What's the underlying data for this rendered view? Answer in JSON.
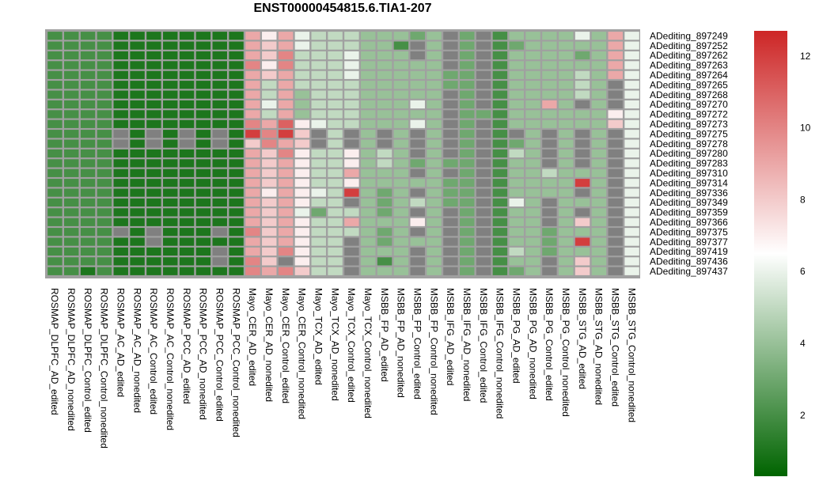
{
  "chart_data": {
    "type": "heatmap",
    "title": "ENST00000454815.6.TIA1-207",
    "rows": [
      "ADediting_897249",
      "ADediting_897252",
      "ADediting_897262",
      "ADediting_897263",
      "ADediting_897264",
      "ADediting_897265",
      "ADediting_897268",
      "ADediting_897270",
      "ADediting_897272",
      "ADediting_897273",
      "ADediting_897275",
      "ADediting_897278",
      "ADediting_897280",
      "ADediting_897283",
      "ADediting_897310",
      "ADediting_897314",
      "ADediting_897336",
      "ADediting_897349",
      "ADediting_897359",
      "ADediting_897366",
      "ADediting_897375",
      "ADediting_897377",
      "ADediting_897419",
      "ADediting_897436",
      "ADediting_897437"
    ],
    "columns": [
      "ROSMAP_DLPFC_AD_edited",
      "ROSMAP_DLPFC_AD_nonedited",
      "ROSMAP_DLPFC_Control_edited",
      "ROSMAP_DLPFC_Control_nonedited",
      "ROSMAP_AC_AD_edited",
      "ROSMAP_AC_AD_nonedited",
      "ROSMAP_AC_Control_edited",
      "ROSMAP_AC_Control_nonedited",
      "ROSMAP_PCC_AD_edited",
      "ROSMAP_PCC_AD_nonedited",
      "ROSMAP_PCC_Control_edited",
      "ROSMAP_PCC_Control_nonedited",
      "Mayo_CER_AD_edited",
      "Mayo_CER_AD_nonedited",
      "Mayo_CER_Control_edited",
      "Mayo_CER_Control_nonedited",
      "Mayo_TCX_AD_edited",
      "Mayo_TCX_AD_nonedited",
      "Mayo_TCX_Control_edited",
      "Mayo_TCX_Control_nonedited",
      "MSBB_FP_AD_edited",
      "MSBB_FP_AD_nonedited",
      "MSBB_FP_Control_edited",
      "MSBB_FP_Control_nonedited",
      "MSBB_IFG_AD_edited",
      "MSBB_IFG_AD_nonedited",
      "MSBB_IFG_Control_edited",
      "MSBB_IFG_Control_nonedited",
      "MSBB_PG_AD_edited",
      "MSBB_PG_AD_nonedited",
      "MSBB_PG_Control_edited",
      "MSBB_PG_Control_nonedited",
      "MSBB_STG_AD_edited",
      "MSBB_STG_AD_nonedited",
      "MSBB_STG_Control_edited",
      "MSBB_STG_Control_nonedited"
    ],
    "values": [
      [
        2,
        2,
        2,
        2,
        1,
        1,
        1,
        1,
        1,
        1,
        1,
        1,
        9,
        7,
        9,
        6,
        5,
        5,
        5,
        4,
        4,
        4,
        3,
        4,
        null,
        3,
        null,
        2,
        4,
        4,
        4,
        4,
        6,
        4,
        9,
        6
      ],
      [
        2,
        2,
        2,
        2,
        1,
        1,
        1,
        1,
        1,
        1,
        1,
        1,
        9,
        8,
        9,
        6,
        5,
        5,
        5,
        4,
        4,
        2,
        null,
        4,
        null,
        3,
        null,
        2,
        3,
        4,
        4,
        4,
        4,
        4,
        9,
        6
      ],
      [
        2,
        2,
        2,
        2,
        1,
        1,
        1,
        1,
        1,
        1,
        1,
        1,
        9,
        8,
        10,
        5,
        5,
        5,
        6,
        4,
        4,
        4,
        null,
        4,
        null,
        3,
        null,
        2,
        4,
        4,
        4,
        4,
        3,
        4,
        9,
        6
      ],
      [
        2,
        2,
        2,
        2,
        1,
        1,
        1,
        1,
        1,
        1,
        1,
        1,
        10,
        7,
        10,
        5,
        5,
        5,
        6,
        4,
        4,
        4,
        4,
        4,
        null,
        3,
        null,
        2,
        4,
        4,
        4,
        4,
        4,
        4,
        9,
        6
      ],
      [
        2,
        2,
        2,
        2,
        1,
        1,
        1,
        1,
        1,
        1,
        1,
        1,
        9,
        8,
        9,
        5,
        5,
        5,
        6,
        4,
        4,
        4,
        4,
        4,
        3,
        3,
        null,
        2,
        4,
        4,
        4,
        4,
        5,
        4,
        9,
        6
      ],
      [
        2,
        2,
        2,
        2,
        1,
        1,
        1,
        1,
        1,
        1,
        1,
        1,
        9,
        5,
        9,
        5,
        5,
        5,
        5,
        4,
        4,
        4,
        4,
        4,
        3,
        3,
        null,
        2,
        4,
        4,
        4,
        4,
        5,
        4,
        null,
        6
      ],
      [
        2,
        2,
        2,
        2,
        1,
        1,
        1,
        1,
        1,
        1,
        1,
        1,
        9,
        5,
        9,
        4,
        5,
        5,
        5,
        4,
        4,
        4,
        4,
        4,
        null,
        3,
        null,
        2,
        4,
        4,
        4,
        4,
        5,
        4,
        null,
        6
      ],
      [
        2,
        2,
        2,
        2,
        1,
        1,
        1,
        1,
        1,
        1,
        1,
        1,
        9,
        6,
        9,
        4,
        5,
        5,
        5,
        4,
        4,
        4,
        6,
        4,
        null,
        3,
        null,
        2,
        4,
        4,
        9,
        4,
        null,
        4,
        null,
        6
      ],
      [
        2,
        2,
        2,
        2,
        1,
        1,
        1,
        1,
        1,
        1,
        1,
        1,
        9,
        5,
        9,
        4,
        5,
        5,
        5,
        4,
        4,
        4,
        4,
        4,
        null,
        3,
        3,
        2,
        4,
        4,
        4,
        4,
        4,
        4,
        7,
        6
      ],
      [
        2,
        2,
        2,
        2,
        1,
        1,
        1,
        1,
        1,
        1,
        1,
        1,
        10,
        9,
        11,
        7,
        6,
        5,
        5,
        4,
        4,
        4,
        6,
        4,
        null,
        3,
        null,
        2,
        4,
        4,
        4,
        4,
        4,
        4,
        8,
        6
      ],
      [
        2,
        2,
        2,
        2,
        null,
        1,
        null,
        1,
        null,
        1,
        null,
        1,
        12,
        10,
        12,
        8,
        null,
        5,
        null,
        4,
        null,
        4,
        null,
        4,
        null,
        3,
        null,
        2,
        null,
        4,
        null,
        4,
        null,
        4,
        null,
        6
      ],
      [
        2,
        2,
        2,
        2,
        null,
        1,
        null,
        1,
        null,
        1,
        null,
        1,
        8,
        10,
        9,
        8,
        null,
        5,
        null,
        4,
        null,
        4,
        null,
        4,
        null,
        3,
        null,
        2,
        3,
        4,
        null,
        4,
        null,
        4,
        null,
        6
      ],
      [
        2,
        2,
        2,
        2,
        1,
        1,
        1,
        1,
        1,
        1,
        1,
        1,
        9,
        8,
        10,
        7,
        5,
        5,
        7,
        4,
        5,
        4,
        null,
        4,
        null,
        3,
        null,
        2,
        5,
        4,
        null,
        4,
        null,
        4,
        null,
        6
      ],
      [
        2,
        2,
        2,
        2,
        1,
        1,
        1,
        1,
        1,
        1,
        1,
        1,
        9,
        8,
        9,
        7,
        5,
        5,
        7,
        4,
        5,
        4,
        3,
        4,
        3,
        3,
        null,
        2,
        4,
        4,
        null,
        4,
        null,
        4,
        null,
        6
      ],
      [
        2,
        2,
        2,
        2,
        1,
        1,
        1,
        1,
        1,
        1,
        1,
        1,
        9,
        8,
        9,
        7,
        5,
        5,
        9,
        4,
        4,
        4,
        null,
        4,
        null,
        3,
        null,
        2,
        4,
        4,
        5,
        4,
        4,
        4,
        null,
        6
      ],
      [
        2,
        2,
        2,
        2,
        1,
        1,
        1,
        1,
        1,
        1,
        1,
        1,
        9,
        8,
        9,
        7,
        5,
        5,
        7,
        4,
        4,
        4,
        4,
        4,
        3,
        3,
        null,
        2,
        4,
        4,
        4,
        4,
        12,
        4,
        null,
        6
      ],
      [
        2,
        2,
        2,
        2,
        1,
        1,
        1,
        1,
        1,
        1,
        1,
        1,
        9,
        7,
        9,
        7,
        6,
        5,
        12,
        4,
        3,
        4,
        null,
        4,
        3,
        3,
        null,
        2,
        4,
        4,
        4,
        4,
        null,
        4,
        null,
        6
      ],
      [
        2,
        2,
        2,
        2,
        1,
        1,
        1,
        1,
        1,
        1,
        1,
        1,
        9,
        8,
        9,
        7,
        5,
        5,
        null,
        4,
        3,
        4,
        5,
        4,
        3,
        3,
        null,
        2,
        6,
        4,
        null,
        4,
        4,
        4,
        null,
        6
      ],
      [
        2,
        2,
        2,
        2,
        1,
        1,
        1,
        1,
        1,
        1,
        1,
        1,
        9,
        8,
        9,
        6,
        3,
        5,
        5,
        4,
        3,
        4,
        null,
        4,
        null,
        3,
        null,
        2,
        4,
        4,
        null,
        4,
        null,
        4,
        null,
        6
      ],
      [
        2,
        2,
        2,
        2,
        1,
        1,
        1,
        1,
        1,
        1,
        1,
        1,
        9,
        8,
        9,
        7,
        5,
        5,
        9,
        4,
        4,
        4,
        7,
        4,
        null,
        3,
        null,
        2,
        4,
        4,
        null,
        4,
        8,
        4,
        null,
        6
      ],
      [
        2,
        2,
        2,
        2,
        null,
        1,
        null,
        1,
        1,
        1,
        null,
        1,
        10,
        8,
        9,
        7,
        5,
        5,
        5,
        4,
        3,
        4,
        null,
        4,
        null,
        3,
        null,
        2,
        4,
        4,
        3,
        4,
        4,
        4,
        null,
        6
      ],
      [
        2,
        2,
        2,
        2,
        1,
        1,
        null,
        1,
        1,
        1,
        1,
        1,
        9,
        8,
        9,
        7,
        5,
        5,
        null,
        4,
        3,
        4,
        4,
        4,
        null,
        3,
        null,
        2,
        4,
        4,
        3,
        4,
        12,
        4,
        null,
        6
      ],
      [
        2,
        2,
        2,
        2,
        1,
        1,
        1,
        1,
        1,
        1,
        null,
        1,
        9,
        8,
        10,
        7,
        5,
        5,
        null,
        4,
        4,
        4,
        null,
        4,
        null,
        3,
        null,
        2,
        5,
        4,
        3,
        4,
        4,
        4,
        null,
        6
      ],
      [
        2,
        2,
        2,
        2,
        1,
        1,
        1,
        1,
        1,
        1,
        null,
        1,
        10,
        8,
        null,
        7,
        5,
        5,
        null,
        4,
        2,
        4,
        null,
        4,
        null,
        3,
        null,
        2,
        4,
        4,
        null,
        4,
        8,
        4,
        null,
        6
      ],
      [
        2,
        2,
        1,
        2,
        1,
        1,
        1,
        1,
        1,
        1,
        1,
        1,
        10,
        9,
        10,
        8,
        5,
        5,
        null,
        4,
        4,
        4,
        null,
        4,
        null,
        3,
        null,
        2,
        3,
        4,
        null,
        4,
        8,
        4,
        null,
        6
      ]
    ],
    "color_scale": {
      "min": 0.3,
      "mid": 6.5,
      "max": 12.7,
      "low_color": "#006400",
      "mid_color": "#ffffff",
      "high_color": "#cd2626",
      "missing_color": "#808080"
    },
    "colorbar_ticks": [
      2,
      4,
      6,
      8,
      10,
      12
    ],
    "colorbar_tick_labels": [
      "2",
      "4",
      "6",
      "8",
      "10",
      "12"
    ]
  }
}
